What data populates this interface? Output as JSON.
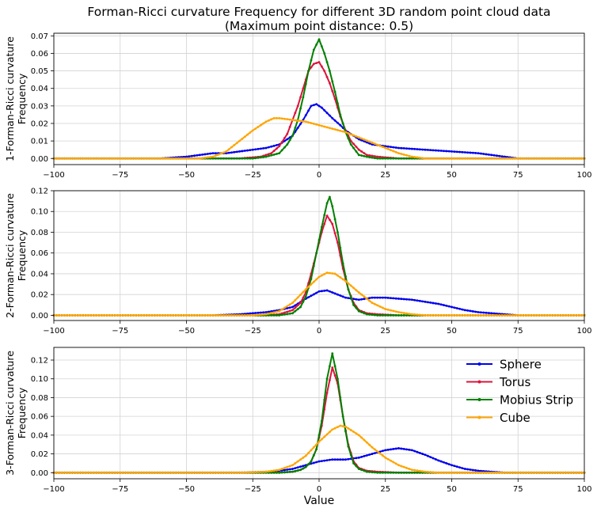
{
  "title_line1": "Forman-Ricci curvature Frequency for different 3D random point cloud data",
  "title_line2": "(Maximum point distance: 0.5)",
  "xlabel": "Value",
  "colors": {
    "Sphere": "#0000ee",
    "Torus": "#dc143c",
    "Mobius Strip": "#008000",
    "Cube": "#ffa500"
  },
  "chart_data": [
    {
      "type": "line",
      "ylabel": [
        "1-Forman-Ricci curvature",
        "Frequency"
      ],
      "xlim": [
        -100,
        100
      ],
      "ylim": [
        -0.0035,
        0.0715
      ],
      "xticks": [
        -100,
        -75,
        -50,
        -25,
        0,
        25,
        50,
        75,
        100
      ],
      "xtick_labels": [
        "−100",
        "−75",
        "−50",
        "−25",
        "0",
        "25",
        "50",
        "75",
        "100"
      ],
      "yticks": [
        0,
        0.01,
        0.02,
        0.03,
        0.04,
        0.05,
        0.06,
        0.07
      ],
      "ytick_labels": [
        "0.00",
        "0.01",
        "0.02",
        "0.03",
        "0.04",
        "0.05",
        "0.06",
        "0.07"
      ],
      "grid": true,
      "series": [
        {
          "name": "Sphere",
          "x": [
            -100,
            -60,
            -50,
            -45,
            -40,
            -35,
            -30,
            -25,
            -20,
            -15,
            -10,
            -6,
            -3,
            -1,
            1,
            3,
            5,
            8,
            10,
            15,
            20,
            25,
            30,
            40,
            50,
            60,
            70,
            75,
            100
          ],
          "y": [
            0,
            0,
            0.001,
            0.002,
            0.003,
            0.003,
            0.004,
            0.005,
            0.006,
            0.008,
            0.013,
            0.022,
            0.03,
            0.031,
            0.029,
            0.026,
            0.023,
            0.019,
            0.016,
            0.011,
            0.008,
            0.007,
            0.006,
            0.005,
            0.004,
            0.003,
            0.001,
            0,
            0
          ]
        },
        {
          "name": "Torus",
          "x": [
            -100,
            -40,
            -30,
            -22,
            -18,
            -15,
            -12,
            -10,
            -8,
            -6,
            -4,
            -2,
            0,
            2,
            4,
            6,
            8,
            10,
            12,
            15,
            18,
            22,
            30,
            100
          ],
          "y": [
            0,
            0,
            0,
            0.001,
            0.003,
            0.007,
            0.014,
            0.022,
            0.03,
            0.04,
            0.05,
            0.054,
            0.055,
            0.05,
            0.043,
            0.034,
            0.024,
            0.016,
            0.01,
            0.005,
            0.002,
            0.001,
            0,
            0
          ]
        },
        {
          "name": "Mobius Strip",
          "x": [
            -100,
            -25,
            -20,
            -15,
            -12,
            -10,
            -8,
            -6,
            -4,
            -2,
            0,
            2,
            4,
            6,
            8,
            10,
            12,
            15,
            18,
            22,
            30,
            100
          ],
          "y": [
            0,
            0,
            0.001,
            0.003,
            0.008,
            0.013,
            0.022,
            0.035,
            0.05,
            0.062,
            0.068,
            0.06,
            0.05,
            0.038,
            0.025,
            0.015,
            0.008,
            0.002,
            0.001,
            0,
            0,
            0
          ]
        },
        {
          "name": "Cube",
          "x": [
            -100,
            -45,
            -40,
            -35,
            -30,
            -25,
            -20,
            -17,
            -15,
            -10,
            -5,
            0,
            5,
            10,
            15,
            20,
            25,
            30,
            35,
            40,
            45,
            100
          ],
          "y": [
            0,
            0,
            0.001,
            0.004,
            0.01,
            0.016,
            0.021,
            0.023,
            0.023,
            0.022,
            0.021,
            0.019,
            0.017,
            0.015,
            0.012,
            0.009,
            0.006,
            0.003,
            0.001,
            0,
            0,
            0
          ]
        }
      ]
    },
    {
      "type": "line",
      "ylabel": [
        "2-Forman-Ricci curvature",
        "Frequency"
      ],
      "xlim": [
        -100,
        100
      ],
      "ylim": [
        -0.005,
        0.12
      ],
      "xticks": [
        -100,
        -75,
        -50,
        -25,
        0,
        25,
        50,
        75,
        100
      ],
      "xtick_labels": [
        "−100",
        "−75",
        "−50",
        "−25",
        "0",
        "25",
        "50",
        "75",
        "100"
      ],
      "yticks": [
        0,
        0.02,
        0.04,
        0.06,
        0.08,
        0.1,
        0.12
      ],
      "ytick_labels": [
        "0.00",
        "0.02",
        "0.04",
        "0.06",
        "0.08",
        "0.10",
        "0.12"
      ],
      "grid": true,
      "series": [
        {
          "name": "Sphere",
          "x": [
            -100,
            -40,
            -30,
            -25,
            -20,
            -15,
            -10,
            -5,
            0,
            3,
            5,
            10,
            15,
            20,
            25,
            30,
            35,
            40,
            45,
            50,
            55,
            60,
            65,
            70,
            75,
            100
          ],
          "y": [
            0,
            0,
            0.001,
            0.002,
            0.003,
            0.005,
            0.008,
            0.016,
            0.023,
            0.024,
            0.022,
            0.017,
            0.015,
            0.017,
            0.017,
            0.016,
            0.015,
            0.013,
            0.011,
            0.008,
            0.005,
            0.003,
            0.002,
            0.001,
            0,
            0
          ]
        },
        {
          "name": "Torus",
          "x": [
            -100,
            -20,
            -15,
            -10,
            -7,
            -5,
            -3,
            -1,
            1,
            3,
            5,
            7,
            9,
            11,
            13,
            15,
            18,
            22,
            30,
            100
          ],
          "y": [
            0,
            0,
            0.001,
            0.005,
            0.012,
            0.022,
            0.04,
            0.06,
            0.08,
            0.096,
            0.088,
            0.07,
            0.045,
            0.025,
            0.012,
            0.005,
            0.002,
            0.001,
            0,
            0
          ]
        },
        {
          "name": "Mobius Strip",
          "x": [
            -100,
            -15,
            -10,
            -7,
            -5,
            -3,
            -1,
            1,
            3,
            4,
            5,
            7,
            9,
            11,
            13,
            15,
            18,
            22,
            30,
            100
          ],
          "y": [
            0,
            0,
            0.002,
            0.008,
            0.018,
            0.035,
            0.06,
            0.085,
            0.108,
            0.114,
            0.105,
            0.08,
            0.05,
            0.025,
            0.01,
            0.004,
            0.001,
            0,
            0,
            0
          ]
        },
        {
          "name": "Cube",
          "x": [
            -100,
            -25,
            -20,
            -15,
            -10,
            -5,
            0,
            3,
            6,
            10,
            15,
            20,
            25,
            30,
            35,
            40,
            45,
            100
          ],
          "y": [
            0,
            0,
            0.001,
            0.004,
            0.012,
            0.025,
            0.037,
            0.041,
            0.04,
            0.033,
            0.022,
            0.012,
            0.006,
            0.003,
            0.001,
            0,
            0,
            0
          ]
        }
      ]
    },
    {
      "type": "line",
      "ylabel": [
        "3-Forman-Ricci curvature",
        "Frequency"
      ],
      "xlim": [
        -100,
        100
      ],
      "ylim": [
        -0.0065,
        0.1335
      ],
      "xticks": [
        -100,
        -75,
        -50,
        -25,
        0,
        25,
        50,
        75,
        100
      ],
      "xtick_labels": [
        "−100",
        "−75",
        "−50",
        "−25",
        "0",
        "25",
        "50",
        "75",
        "100"
      ],
      "yticks": [
        0,
        0.02,
        0.04,
        0.06,
        0.08,
        0.1,
        0.12
      ],
      "ytick_labels": [
        "0.00",
        "0.02",
        "0.04",
        "0.06",
        "0.08",
        "0.10",
        "0.12"
      ],
      "grid": true,
      "legend": "top-right",
      "series": [
        {
          "name": "Sphere",
          "x": [
            -100,
            -30,
            -20,
            -15,
            -10,
            -5,
            0,
            5,
            10,
            15,
            20,
            25,
            30,
            35,
            40,
            45,
            50,
            55,
            60,
            65,
            70,
            100
          ],
          "y": [
            0,
            0,
            0.001,
            0.002,
            0.004,
            0.008,
            0.012,
            0.014,
            0.014,
            0.016,
            0.02,
            0.024,
            0.026,
            0.024,
            0.019,
            0.013,
            0.008,
            0.004,
            0.002,
            0.001,
            0,
            0
          ]
        },
        {
          "name": "Torus",
          "x": [
            -100,
            -15,
            -10,
            -7,
            -5,
            -3,
            -1,
            1,
            3,
            5,
            7,
            9,
            11,
            13,
            15,
            18,
            22,
            30,
            100
          ],
          "y": [
            0,
            0,
            0.001,
            0.003,
            0.006,
            0.012,
            0.025,
            0.05,
            0.085,
            0.112,
            0.095,
            0.06,
            0.03,
            0.012,
            0.005,
            0.002,
            0.001,
            0,
            0
          ]
        },
        {
          "name": "Mobius Strip",
          "x": [
            -100,
            -15,
            -10,
            -7,
            -5,
            -3,
            -1,
            1,
            3,
            5,
            7,
            9,
            11,
            13,
            15,
            18,
            22,
            30,
            100
          ],
          "y": [
            0,
            0,
            0.001,
            0.003,
            0.006,
            0.012,
            0.025,
            0.055,
            0.1,
            0.127,
            0.1,
            0.06,
            0.028,
            0.01,
            0.004,
            0.001,
            0,
            0,
            0
          ]
        },
        {
          "name": "Cube",
          "x": [
            -100,
            -30,
            -20,
            -15,
            -10,
            -5,
            0,
            5,
            8,
            10,
            15,
            20,
            25,
            30,
            35,
            40,
            45,
            50,
            100
          ],
          "y": [
            0,
            0,
            0.001,
            0.003,
            0.008,
            0.018,
            0.033,
            0.046,
            0.05,
            0.049,
            0.04,
            0.027,
            0.016,
            0.008,
            0.003,
            0.001,
            0,
            0,
            0
          ]
        }
      ]
    }
  ]
}
